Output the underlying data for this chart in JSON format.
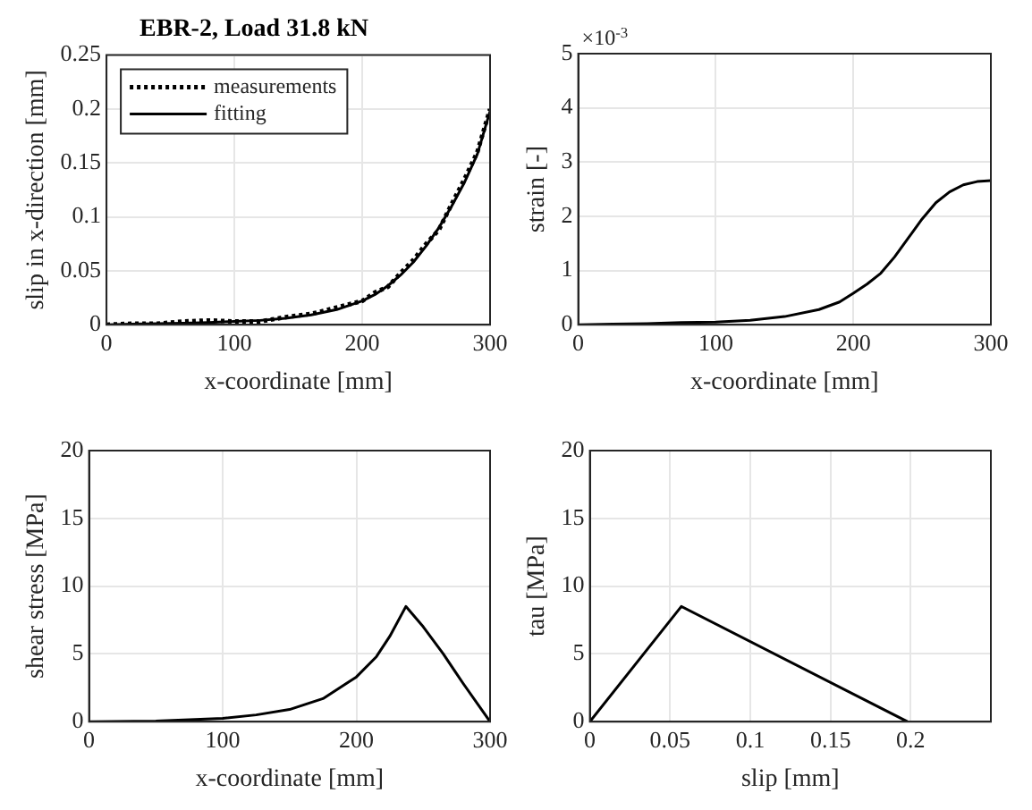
{
  "chart_data": [
    {
      "type": "line",
      "title": "EBR-2, Load 31.8 kN",
      "xlabel": "x-coordinate [mm]",
      "ylabel": "slip in x-direction [mm]",
      "xlim": [
        0,
        300
      ],
      "ylim": [
        0,
        0.25
      ],
      "xticks": [
        0,
        100,
        200,
        300
      ],
      "yticks": [
        0,
        0.05,
        0.1,
        0.15,
        0.2,
        0.25
      ],
      "grid": true,
      "legend": "top left",
      "marker": "none",
      "series": [
        {
          "name": "measurements",
          "color": "#000000",
          "line_style": "dotted",
          "x": [
            0,
            20,
            40,
            60,
            80,
            100,
            120,
            140,
            160,
            180,
            200,
            210,
            220,
            230,
            240,
            250,
            260,
            270,
            280,
            290,
            300
          ],
          "values": [
            0,
            0.001,
            0.001,
            0.003,
            0.004,
            0.003,
            0.003,
            0.007,
            0.01,
            0.016,
            0.022,
            0.03,
            0.035,
            0.048,
            0.06,
            0.075,
            0.088,
            0.112,
            0.135,
            0.16,
            0.2
          ]
        },
        {
          "name": "fitting",
          "color": "#000000",
          "line_style": "solid",
          "x": [
            0,
            20,
            40,
            60,
            80,
            100,
            120,
            140,
            160,
            180,
            200,
            210,
            220,
            230,
            240,
            250,
            260,
            270,
            280,
            290,
            300
          ],
          "values": [
            0,
            0.0005,
            0.001,
            0.0015,
            0.002,
            0.003,
            0.004,
            0.006,
            0.009,
            0.014,
            0.022,
            0.028,
            0.036,
            0.046,
            0.058,
            0.073,
            0.09,
            0.11,
            0.132,
            0.158,
            0.198
          ]
        }
      ]
    },
    {
      "type": "line",
      "xlabel": "x-coordinate [mm]",
      "ylabel": "strain [-]",
      "annotations": [
        "×10$^{-3}$"
      ],
      "xlim": [
        0,
        300
      ],
      "ylim": [
        0,
        5
      ],
      "xticks": [
        0,
        100,
        200,
        300
      ],
      "yticks": [
        0,
        1,
        2,
        3,
        4,
        5
      ],
      "grid": true,
      "marker": "none",
      "series": [
        {
          "color": "#000000",
          "line_style": "solid",
          "x": [
            0,
            25,
            50,
            75,
            100,
            125,
            150,
            175,
            190,
            200,
            210,
            220,
            230,
            240,
            250,
            260,
            270,
            280,
            290,
            300
          ],
          "values": [
            0,
            0.01,
            0.02,
            0.04,
            0.05,
            0.08,
            0.15,
            0.28,
            0.42,
            0.58,
            0.75,
            0.95,
            1.25,
            1.6,
            1.95,
            2.25,
            2.45,
            2.58,
            2.64,
            2.66
          ]
        }
      ]
    },
    {
      "type": "line",
      "xlabel": "x-coordinate [mm]",
      "ylabel": "shear stress [MPa]",
      "xlim": [
        0,
        300
      ],
      "ylim": [
        0,
        20
      ],
      "xticks": [
        0,
        100,
        200,
        300
      ],
      "yticks": [
        0,
        5,
        10,
        15,
        20
      ],
      "grid": true,
      "marker": "none",
      "series": [
        {
          "color": "#000000",
          "line_style": "solid",
          "x": [
            0,
            50,
            100,
            125,
            150,
            175,
            200,
            215,
            225,
            237,
            250,
            265,
            280,
            300
          ],
          "values": [
            0,
            0.05,
            0.25,
            0.5,
            0.9,
            1.7,
            3.3,
            4.8,
            6.3,
            8.5,
            7.0,
            5.0,
            2.8,
            0
          ]
        }
      ]
    },
    {
      "type": "line",
      "xlabel": "slip [mm]",
      "ylabel": "tau [MPa]",
      "xlim": [
        0,
        0.25
      ],
      "ylim": [
        0,
        20
      ],
      "xticks": [
        0,
        0.05,
        0.1,
        0.15,
        0.2
      ],
      "yticks": [
        0,
        5,
        10,
        15,
        20
      ],
      "grid": true,
      "marker": "none",
      "series": [
        {
          "color": "#000000",
          "line_style": "solid",
          "x": [
            0,
            0.057,
            0.198
          ],
          "values": [
            0,
            8.5,
            0
          ]
        }
      ]
    }
  ]
}
